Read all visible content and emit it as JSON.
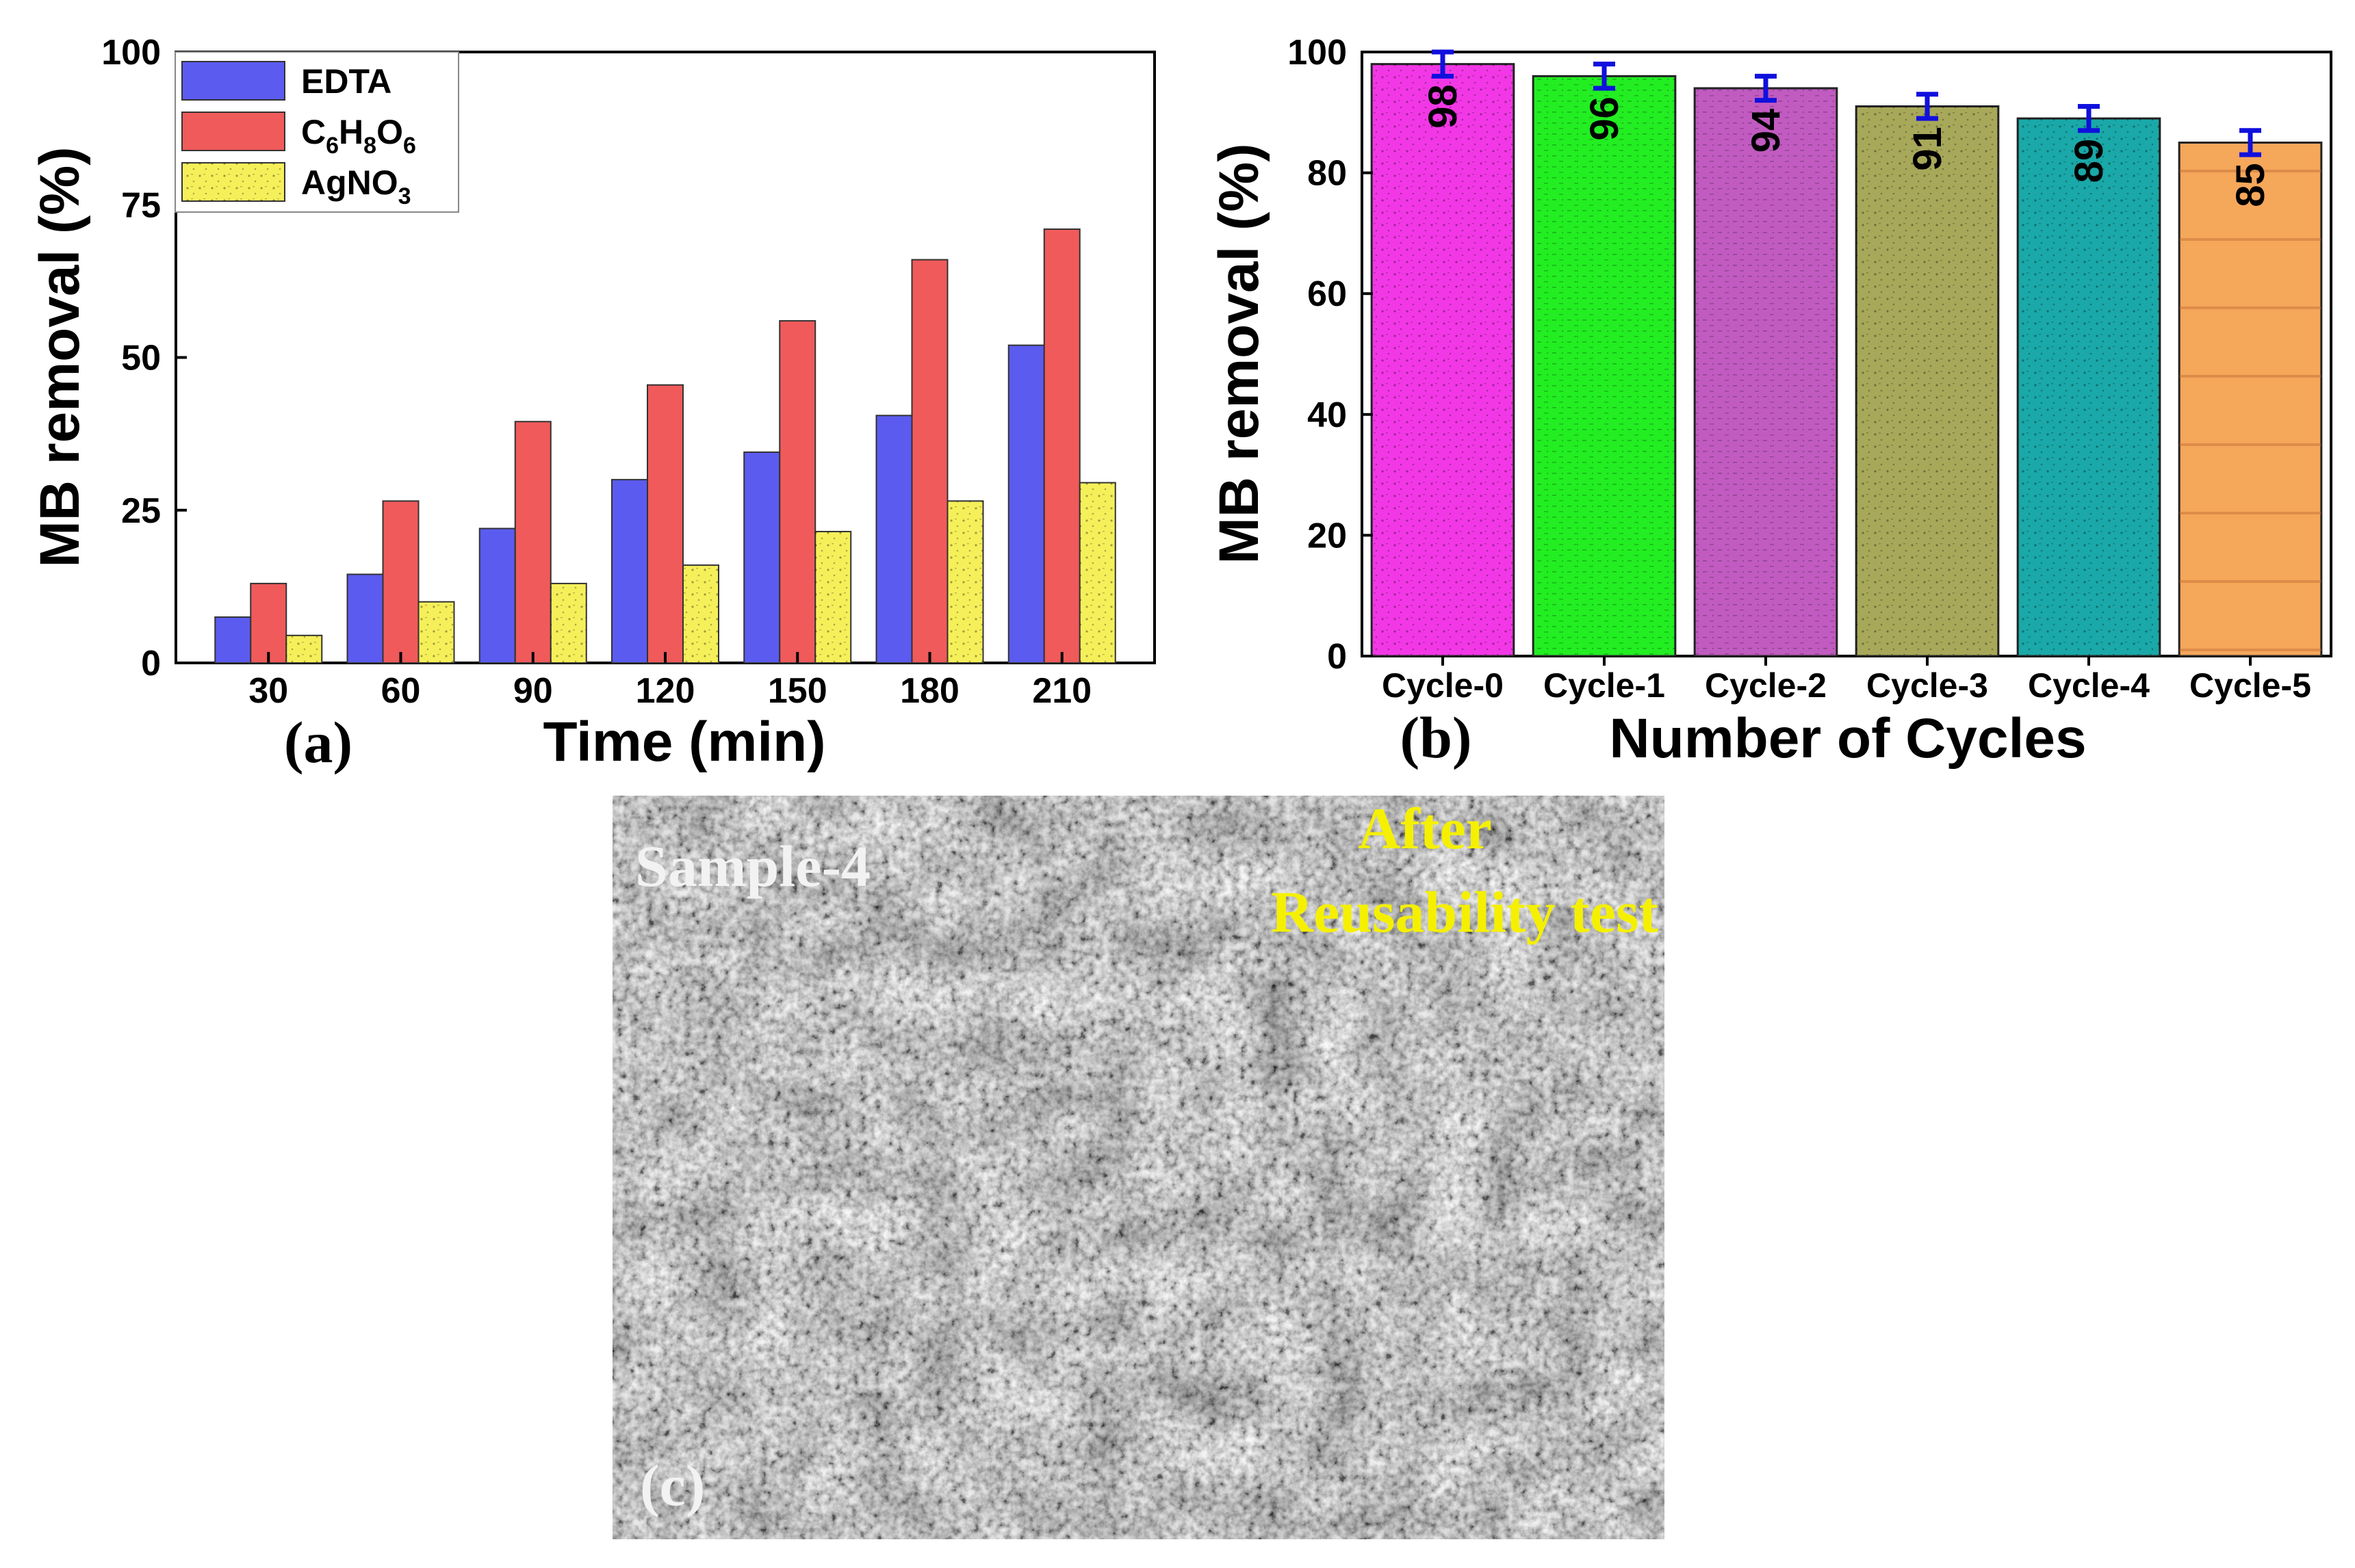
{
  "chart_data": [
    {
      "type": "bar",
      "panel_label": "(a)",
      "title": "",
      "xlabel": "Time (min)",
      "ylabel": "MB removal (%)",
      "ylim": [
        0,
        100
      ],
      "yticks": [
        "0",
        "25",
        "50",
        "75",
        "100"
      ],
      "categories": [
        "30",
        "60",
        "90",
        "120",
        "150",
        "180",
        "210"
      ],
      "legend_position": "top-left",
      "series": [
        {
          "name": "EDTA",
          "color": "#5b5bf0",
          "values": [
            7.5,
            14.5,
            22,
            30,
            34.5,
            40.5,
            52
          ]
        },
        {
          "name": "C6H8O6",
          "legend": {
            "base": "C",
            "s1": "6",
            "b2": "H",
            "s2": "8",
            "b3": "O",
            "s3": "6"
          },
          "color": "#f05a5a",
          "values": [
            13,
            26.5,
            39.5,
            45.5,
            56,
            66,
            71
          ]
        },
        {
          "name": "AgNO3",
          "legend": {
            "base": "AgNO",
            "s1": "3"
          },
          "color": "#f5f05a",
          "values": [
            4.5,
            10,
            13,
            16,
            21.5,
            26.5,
            29.5
          ]
        }
      ]
    },
    {
      "type": "bar",
      "panel_label": "(b)",
      "title": "",
      "xlabel": "Number of Cycles",
      "ylabel": "MB removal (%)",
      "ylim": [
        0,
        100
      ],
      "yticks": [
        "0",
        "20",
        "40",
        "60",
        "80",
        "100"
      ],
      "categories": [
        "Cycle-0",
        "Cycle-1",
        "Cycle-2",
        "Cycle-3",
        "Cycle-4",
        "Cycle-5"
      ],
      "values": [
        98,
        96,
        94,
        91,
        89,
        85
      ],
      "value_labels": [
        "98",
        "96",
        "94",
        "91",
        "89",
        "85"
      ],
      "errors": [
        2,
        2,
        2,
        2,
        2,
        2
      ],
      "colors": [
        "#f238e6",
        "#22ee22",
        "#c15bc1",
        "#a8a85a",
        "#1aa8a8",
        "#f5a75a"
      ],
      "error_color": "#1010dd"
    }
  ],
  "sem_image": {
    "panel_label": "(c)",
    "sample_label": "Sample-4",
    "caption_line1": "After",
    "caption_line2": "Reusability test",
    "caption_color": "#f5f000"
  }
}
